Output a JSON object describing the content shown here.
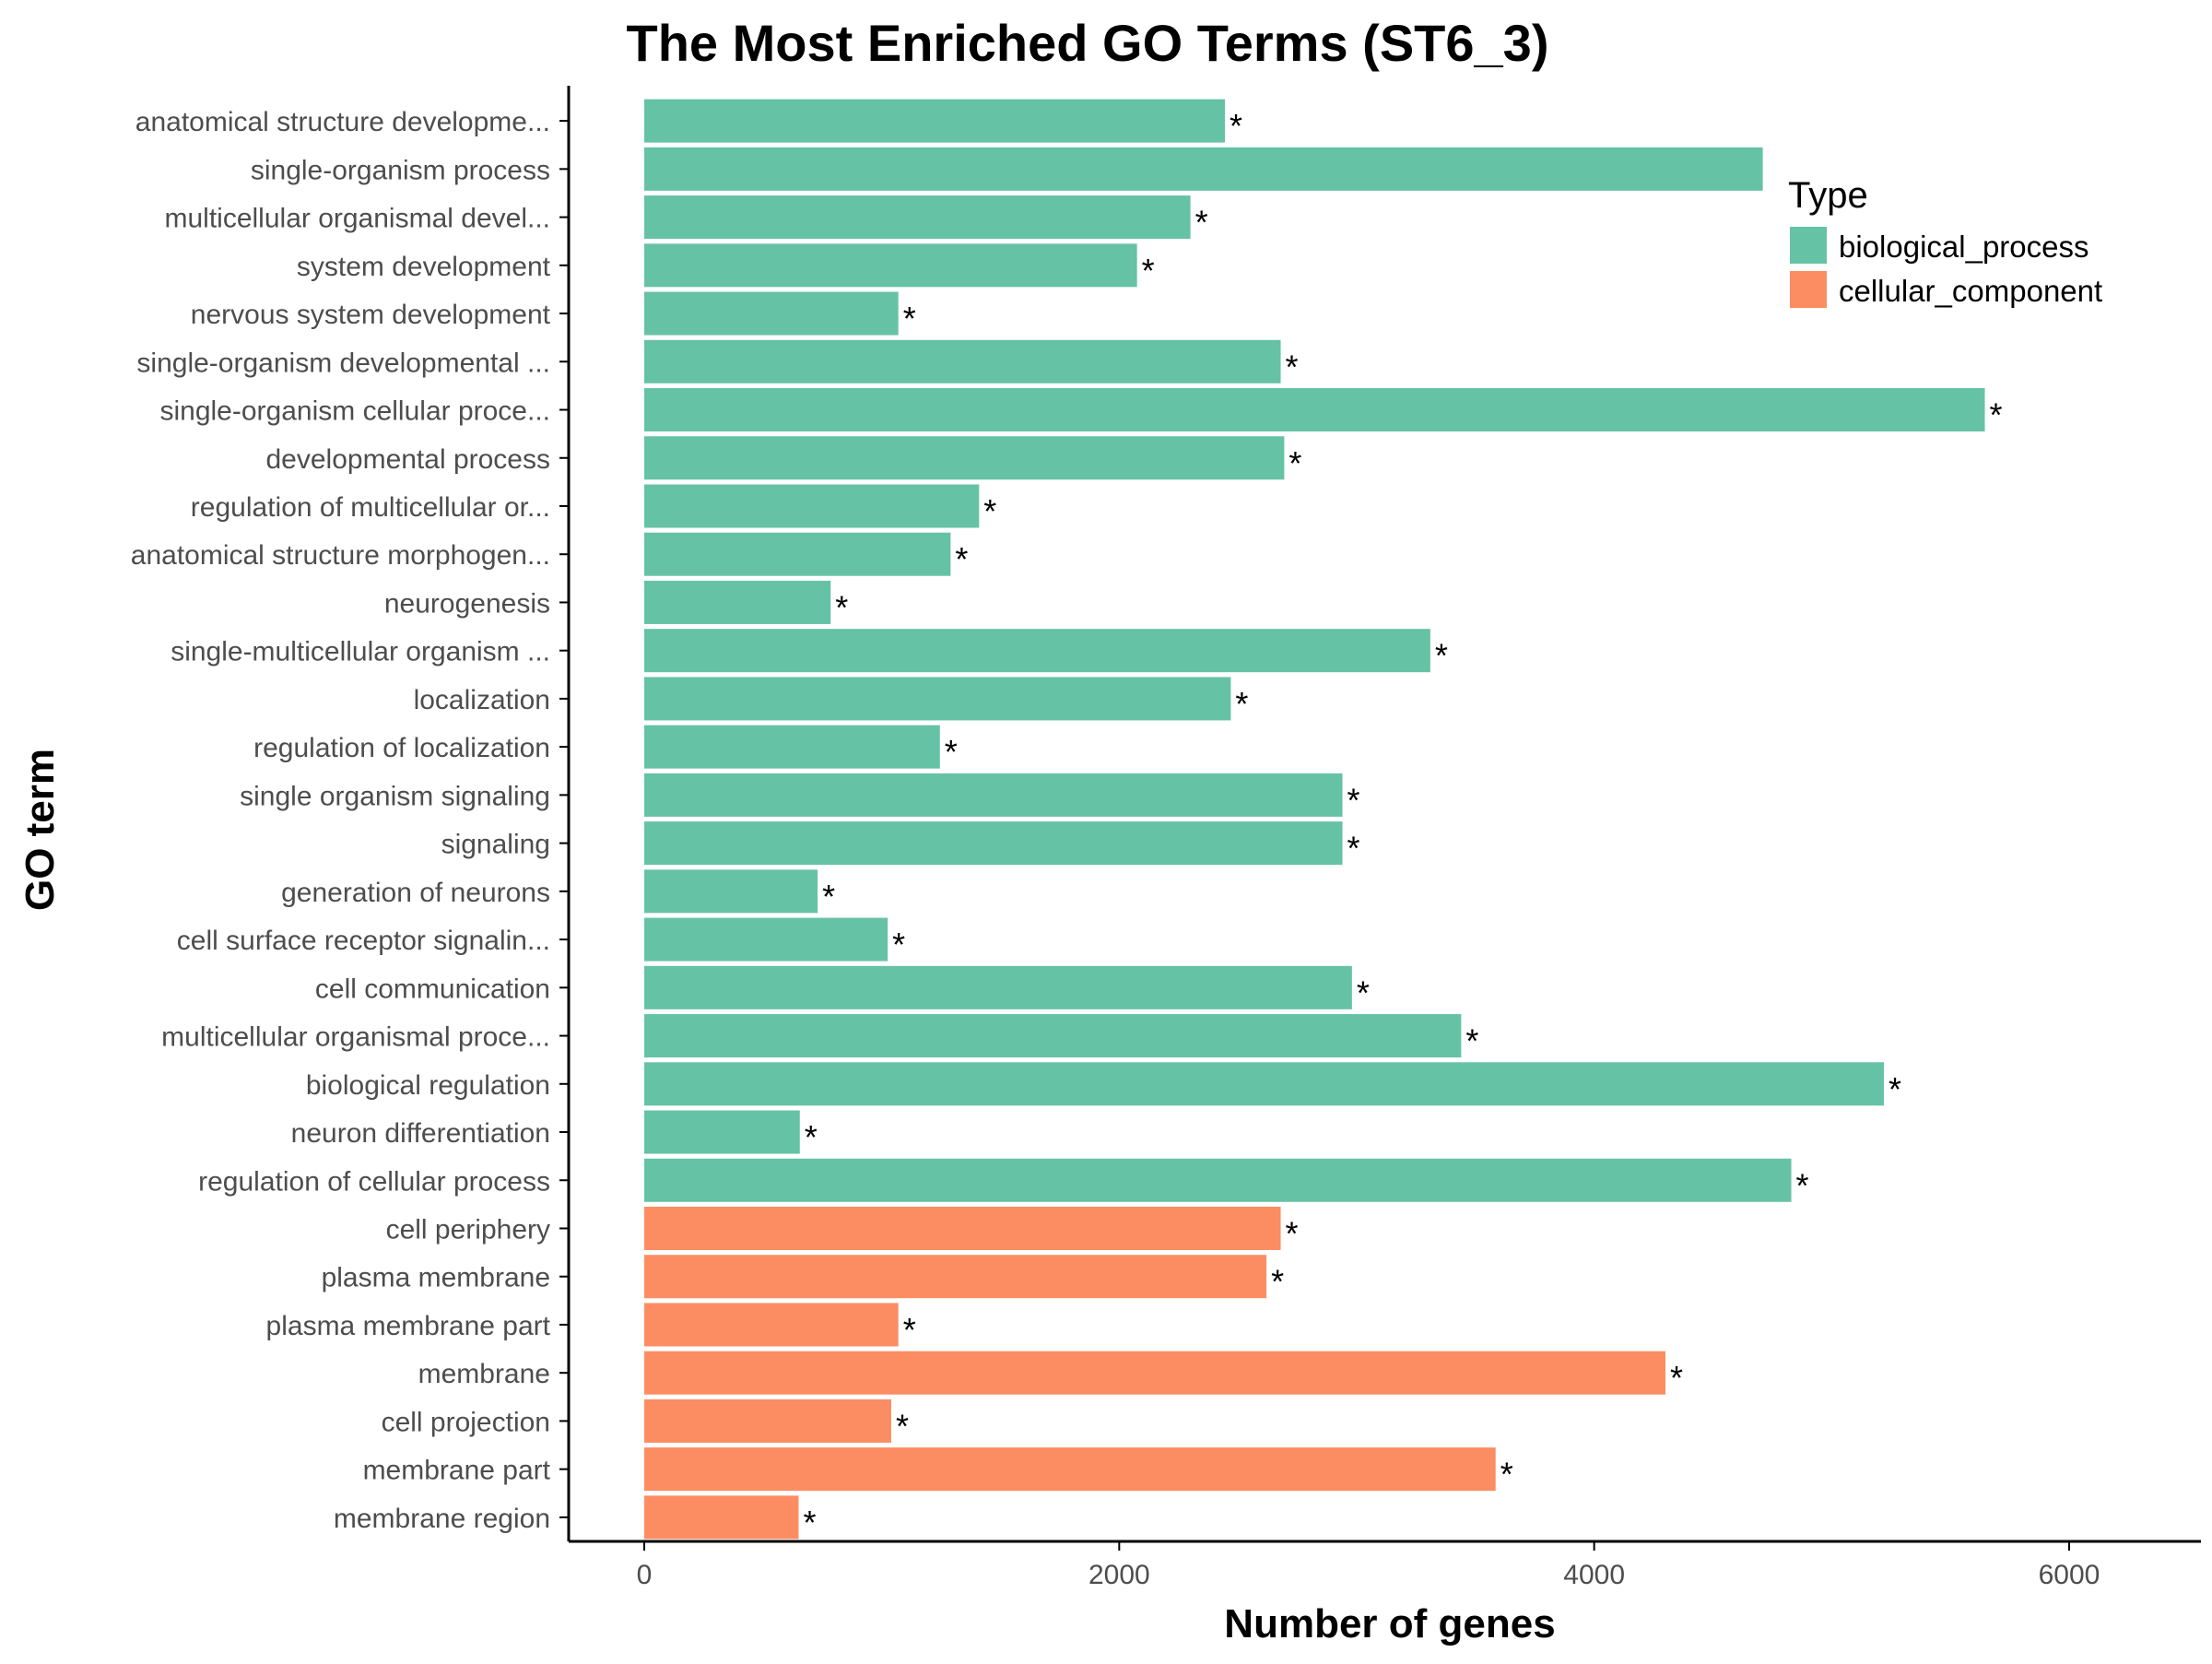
{
  "chart_data": {
    "type": "bar",
    "orientation": "horizontal",
    "title": "The Most Enriched GO Terms (ST6_3)",
    "xlabel": "Number of genes",
    "ylabel": "GO term",
    "xlim": [
      -320,
      6500
    ],
    "xticks": [
      0,
      2000,
      4000,
      6000
    ],
    "xtick_labels": [
      "0",
      "2000",
      "4000",
      "6000"
    ],
    "grid": false,
    "legend": {
      "title": "Type",
      "position": "top-right",
      "entries": [
        {
          "label": "biological_process",
          "color": "#66C2A5"
        },
        {
          "label": "cellular_component",
          "color": "#FC8D62"
        }
      ]
    },
    "categories": [
      "anatomical structure developme...",
      "single-organism process",
      "multicellular organismal devel...",
      "system development",
      "nervous system development",
      "single-organism developmental ...",
      "single-organism cellular proce...",
      "developmental process",
      "regulation of multicellular or...",
      "anatomical structure morphogen...",
      "neurogenesis",
      "single-multicellular organism ...",
      "localization",
      "regulation of localization",
      "single organism signaling",
      "signaling",
      "generation of neurons",
      "cell surface receptor signalin...",
      "cell communication",
      "multicellular organismal proce...",
      "biological regulation",
      "neuron differentiation",
      "regulation of cellular process",
      "cell periphery",
      "plasma membrane",
      "plasma membrane part",
      "membrane",
      "cell projection",
      "membrane part",
      "membrane region"
    ],
    "values": [
      2445,
      4710,
      2300,
      2075,
      1070,
      2680,
      5645,
      2695,
      1410,
      1290,
      785,
      3310,
      2470,
      1245,
      2940,
      2940,
      730,
      1025,
      2980,
      3440,
      5220,
      655,
      4830,
      2680,
      2620,
      1070,
      4300,
      1040,
      3585,
      650
    ],
    "types": [
      "biological_process",
      "biological_process",
      "biological_process",
      "biological_process",
      "biological_process",
      "biological_process",
      "biological_process",
      "biological_process",
      "biological_process",
      "biological_process",
      "biological_process",
      "biological_process",
      "biological_process",
      "biological_process",
      "biological_process",
      "biological_process",
      "biological_process",
      "biological_process",
      "biological_process",
      "biological_process",
      "biological_process",
      "biological_process",
      "biological_process",
      "cellular_component",
      "cellular_component",
      "cellular_component",
      "cellular_component",
      "cellular_component",
      "cellular_component",
      "cellular_component"
    ],
    "significance": [
      "*",
      "",
      "*",
      "*",
      "*",
      "*",
      "*",
      "*",
      "*",
      "*",
      "*",
      "*",
      "*",
      "*",
      "*",
      "*",
      "*",
      "*",
      "*",
      "*",
      "*",
      "*",
      "*",
      "*",
      "*",
      "*",
      "*",
      "*",
      "*",
      "*"
    ]
  }
}
